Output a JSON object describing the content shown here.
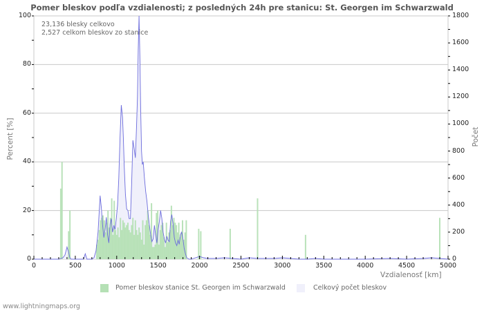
{
  "title": "Pomer bleskov podľa vzdialenosti; z posledných 24h pre stanicu: St. Georgen im Schwarzwald",
  "info": {
    "line1": "23,136 blesky celkovo",
    "line2": "2,527 celkom bleskov zo stanice"
  },
  "axes": {
    "left_label": "Percent   [%]",
    "right_label": "Počet",
    "x_label": "Vzdialenosť   [km]",
    "left_ticks": [
      "0",
      "20",
      "40",
      "60",
      "80",
      "100"
    ],
    "right_ticks": [
      "0",
      "200",
      "400",
      "600",
      "800",
      "1000",
      "1200",
      "1400",
      "1600",
      "1800"
    ],
    "x_ticks": [
      "0",
      "500",
      "1000",
      "1500",
      "2000",
      "2500",
      "3000",
      "3500",
      "4000",
      "4500",
      "5000"
    ]
  },
  "legend": {
    "station": "Pomer bleskov stanice St. Georgen im Schwarzwald",
    "total": "Celkový počet bleskov"
  },
  "colors": {
    "bar": "#b5e0b5",
    "line": "#6b6bdc",
    "fill": "#f0f0fb",
    "grid": "#c8c8c8"
  },
  "credit": "www.lightningmaps.org",
  "chart_data": {
    "type": "bar+area",
    "title": "Pomer bleskov podľa vzdialenosti; z posledných 24h pre stanicu: St. Georgen im Schwarzwald",
    "xlabel": "Vzdialenosť [km]",
    "ylabel": "Percent [%]",
    "y2label": "Počet",
    "xlim": [
      0,
      5000
    ],
    "ylim": [
      0,
      100
    ],
    "y2lim": [
      0,
      1800
    ],
    "grid": true,
    "legend_position": "bottom",
    "series": [
      {
        "name": "Pomer bleskov stanice St. Georgen im Schwarzwald",
        "type": "bar",
        "axis": "left",
        "x": [
          325,
          340,
          420,
          435,
          760,
          775,
          790,
          805,
          820,
          835,
          850,
          865,
          880,
          895,
          910,
          925,
          940,
          955,
          970,
          985,
          1000,
          1015,
          1030,
          1045,
          1060,
          1075,
          1090,
          1105,
          1120,
          1135,
          1150,
          1165,
          1180,
          1195,
          1210,
          1225,
          1240,
          1255,
          1270,
          1285,
          1300,
          1315,
          1330,
          1345,
          1360,
          1375,
          1390,
          1405,
          1420,
          1435,
          1450,
          1465,
          1480,
          1495,
          1510,
          1525,
          1540,
          1555,
          1570,
          1585,
          1600,
          1615,
          1630,
          1645,
          1660,
          1675,
          1690,
          1705,
          1720,
          1735,
          1750,
          1765,
          1780,
          1795,
          1810,
          1825,
          1840,
          1990,
          2015,
          2370,
          2700,
          3280,
          4900
        ],
        "values": [
          29,
          40,
          11.5,
          20,
          6,
          8,
          12,
          16,
          17,
          18,
          16,
          11,
          15,
          20,
          13,
          17,
          25,
          10,
          24,
          12,
          10,
          13,
          9,
          17,
          12,
          16,
          15,
          13,
          14,
          15,
          12,
          11,
          14,
          17,
          10,
          16,
          12,
          10,
          13,
          11,
          8,
          16,
          6,
          14,
          16,
          20,
          14,
          10,
          23,
          5,
          5,
          6,
          19,
          20,
          6,
          12,
          14,
          15,
          9,
          5,
          15,
          7,
          11,
          12,
          22,
          14,
          17,
          15,
          14,
          11,
          15,
          9,
          11,
          16,
          8,
          11,
          16,
          12.5,
          11.5,
          12.5,
          25,
          10,
          17
        ]
      },
      {
        "name": "Celkový počet bleskov",
        "type": "area",
        "axis": "right",
        "x": [
          0,
          300,
          350,
          375,
          400,
          420,
          435,
          450,
          500,
          550,
          600,
          620,
          640,
          700,
          725,
          750,
          775,
          800,
          815,
          830,
          845,
          860,
          875,
          890,
          905,
          920,
          935,
          950,
          965,
          980,
          995,
          1010,
          1025,
          1040,
          1055,
          1070,
          1080,
          1090,
          1105,
          1120,
          1135,
          1150,
          1165,
          1180,
          1195,
          1210,
          1225,
          1240,
          1250,
          1260,
          1270,
          1280,
          1290,
          1300,
          1310,
          1320,
          1335,
          1350,
          1365,
          1380,
          1395,
          1410,
          1425,
          1440,
          1455,
          1470,
          1485,
          1500,
          1515,
          1530,
          1545,
          1560,
          1575,
          1590,
          1605,
          1620,
          1635,
          1650,
          1665,
          1680,
          1695,
          1710,
          1725,
          1740,
          1755,
          1770,
          1785,
          1800,
          1815,
          1830,
          1845,
          1860,
          1875,
          1900,
          1950,
          2000,
          2050,
          2100,
          2200,
          2300,
          2400,
          2500,
          2600,
          2700,
          2800,
          2900,
          3000,
          3100,
          3200,
          3300,
          3400,
          3500,
          4000,
          4300,
          4500,
          4700,
          4800,
          4900,
          5000
        ],
        "values": [
          0,
          0,
          10,
          30,
          90,
          50,
          10,
          0,
          0,
          0,
          0,
          40,
          0,
          0,
          10,
          60,
          200,
          470,
          380,
          250,
          160,
          220,
          310,
          180,
          120,
          260,
          300,
          200,
          250,
          220,
          300,
          400,
          600,
          900,
          1140,
          1050,
          900,
          700,
          480,
          370,
          360,
          300,
          300,
          560,
          880,
          820,
          750,
          1000,
          1200,
          1550,
          1800,
          1500,
          1100,
          800,
          700,
          720,
          600,
          500,
          430,
          330,
          250,
          180,
          130,
          150,
          250,
          180,
          120,
          220,
          280,
          360,
          300,
          200,
          150,
          120,
          170,
          140,
          130,
          280,
          330,
          260,
          160,
          120,
          100,
          140,
          110,
          180,
          200,
          150,
          80,
          40,
          10,
          5,
          0,
          0,
          10,
          20,
          10,
          5,
          5,
          10,
          5,
          0,
          10,
          5,
          5,
          5,
          10,
          5,
          0,
          0,
          5,
          0,
          0,
          5,
          0,
          5,
          10,
          5,
          0
        ]
      }
    ]
  }
}
